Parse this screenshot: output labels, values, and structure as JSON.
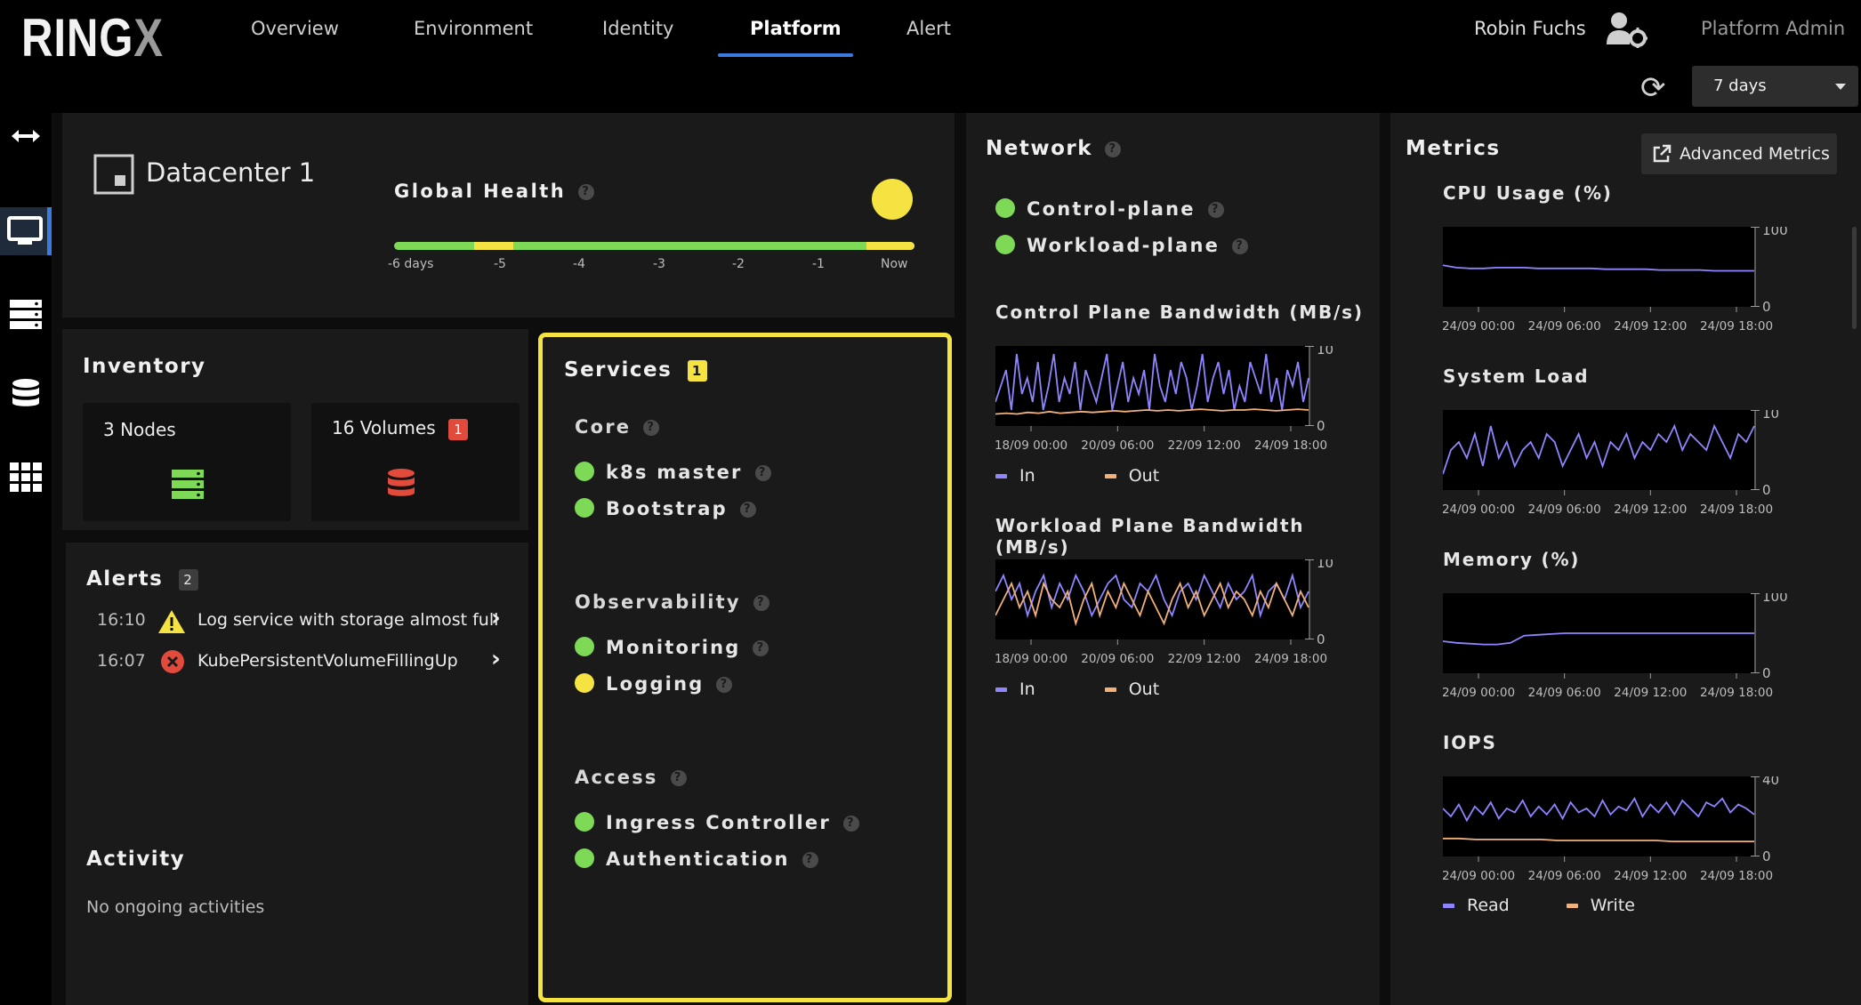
{
  "app": {
    "logo_main": "RING",
    "logo_x": "X"
  },
  "nav": {
    "tabs": [
      {
        "label": "Overview"
      },
      {
        "label": "Environment"
      },
      {
        "label": "Identity"
      },
      {
        "label": "Platform",
        "active": true
      },
      {
        "label": "Alert"
      }
    ],
    "user": "Robin Fuchs",
    "user_icon": "user-gear-icon",
    "role": "Platform Admin",
    "time_range": "7 days",
    "refresh_icon": "refresh-icon"
  },
  "sidebar": {
    "items": [
      {
        "icon": "expand-arrows-icon"
      },
      {
        "icon": "monitor-icon",
        "active": true
      },
      {
        "icon": "server-icon"
      },
      {
        "icon": "database-icon"
      },
      {
        "icon": "apps-grid-icon"
      }
    ]
  },
  "datacenter": {
    "name": "Datacenter 1",
    "global_health_label": "Global Health",
    "status_color": "#f5e342",
    "timeline_labels": [
      "-6 days",
      "-5",
      "-4",
      "-3",
      "-2",
      "-1",
      "Now"
    ]
  },
  "inventory": {
    "title": "Inventory",
    "nodes_label": "3 Nodes",
    "volumes_label": "16 Volumes",
    "volumes_alert_count": "1"
  },
  "alerts": {
    "title": "Alerts",
    "count": "2",
    "items": [
      {
        "time": "16:10",
        "text": "Log service with storage almost full",
        "severity": "warning"
      },
      {
        "time": "16:07",
        "text": "KubePersistentVolumeFillingUp",
        "severity": "critical"
      }
    ]
  },
  "activity": {
    "title": "Activity",
    "empty_text": "No ongoing activities"
  },
  "services": {
    "title": "Services",
    "badge": "1",
    "groups": [
      {
        "name": "Core",
        "items": [
          {
            "name": "k8s master",
            "status": "healthy"
          },
          {
            "name": "Bootstrap",
            "status": "healthy"
          }
        ]
      },
      {
        "name": "Observability",
        "items": [
          {
            "name": "Monitoring",
            "status": "healthy"
          },
          {
            "name": "Logging",
            "status": "warning"
          }
        ]
      },
      {
        "name": "Access",
        "items": [
          {
            "name": "Ingress Controller",
            "status": "healthy"
          },
          {
            "name": "Authentication",
            "status": "healthy"
          }
        ]
      }
    ]
  },
  "network": {
    "title": "Network",
    "planes": [
      {
        "name": "Control-plane",
        "status": "healthy"
      },
      {
        "name": "Workload-plane",
        "status": "healthy"
      }
    ],
    "legend": [
      "In",
      "Out"
    ]
  },
  "metrics": {
    "title": "Metrics",
    "advanced_button": "Advanced Metrics",
    "io_legend": [
      "Read",
      "Write"
    ]
  },
  "colors": {
    "healthy": "#7ed957",
    "warning": "#f5e342",
    "critical": "#e24a3b",
    "series_in": "#8f86ff",
    "series_out": "#f2b07a",
    "accent": "#3a7be0"
  },
  "chart_data": [
    {
      "type": "line",
      "title": "Control Plane Bandwidth (MB/s)",
      "ylim": [
        0,
        10
      ],
      "yticks": [
        "10",
        "0"
      ],
      "x_ticks": [
        "18/09 00:00",
        "20/09 06:00",
        "22/09 12:00",
        "24/09 18:00"
      ],
      "series": [
        {
          "name": "In",
          "values": [
            3,
            5,
            7,
            2,
            9,
            4,
            6,
            3,
            8,
            2,
            5,
            9,
            3,
            6,
            4,
            8,
            2,
            7,
            5,
            3,
            6,
            9,
            2,
            5,
            8,
            3,
            6,
            4,
            7,
            2,
            9,
            5,
            3,
            7,
            4,
            8,
            6,
            2,
            5,
            9,
            3,
            6,
            8,
            4,
            7,
            2,
            5,
            3,
            8,
            6,
            4,
            9,
            3,
            6,
            2,
            7,
            5,
            8,
            3,
            6
          ]
        },
        {
          "name": "Out",
          "values": [
            1.5,
            1.6,
            1.5,
            1.7,
            1.6,
            1.8,
            1.6,
            1.7,
            1.8,
            1.7,
            1.8,
            1.9,
            1.8,
            1.9,
            2.0,
            1.9,
            2.0,
            1.9,
            2.0,
            2.1,
            2.0,
            1.9,
            2.0,
            2.0,
            2.1,
            2.0,
            1.9,
            2.0,
            2.1,
            2.0
          ]
        }
      ]
    },
    {
      "type": "line",
      "title": "Workload Plane Bandwidth (MB/s)",
      "ylim": [
        0,
        10
      ],
      "yticks": [
        "10",
        "0"
      ],
      "x_ticks": [
        "18/09 00:00",
        "20/09 06:00",
        "22/09 12:00",
        "24/09 18:00"
      ],
      "series": [
        {
          "name": "In",
          "values": [
            6,
            8,
            5,
            7,
            3,
            6,
            8,
            4,
            7,
            5,
            8,
            6,
            3,
            5,
            7,
            8,
            5,
            4,
            7,
            6,
            8,
            5,
            3,
            6,
            7,
            5,
            8,
            6,
            4,
            7,
            5,
            6,
            8,
            3,
            6,
            7,
            5,
            8,
            4,
            6
          ]
        },
        {
          "name": "Out",
          "values": [
            3,
            5,
            7,
            4,
            6,
            3,
            7,
            5,
            4,
            6,
            2,
            5,
            7,
            3,
            6,
            4,
            7,
            5,
            3,
            6,
            4,
            2,
            5,
            7,
            4,
            6,
            3,
            5,
            7,
            4,
            6,
            5,
            3,
            6,
            4,
            7,
            5,
            3,
            6,
            4
          ]
        }
      ]
    },
    {
      "type": "line",
      "title": "CPU Usage (%)",
      "ylim": [
        0,
        100
      ],
      "yticks": [
        "100",
        "0"
      ],
      "x_ticks": [
        "24/09 00:00",
        "24/09 06:00",
        "24/09 12:00",
        "24/09 18:00"
      ],
      "series": [
        {
          "values": [
            52,
            49,
            48,
            48,
            49,
            49,
            49,
            48,
            48,
            48,
            48,
            48,
            47,
            47,
            47,
            47,
            46,
            46,
            46,
            46,
            45,
            45,
            45,
            45
          ]
        }
      ]
    },
    {
      "type": "line",
      "title": "System Load",
      "ylim": [
        0,
        10
      ],
      "yticks": [
        "10",
        "0"
      ],
      "x_ticks": [
        "24/09 00:00",
        "24/09 06:00",
        "24/09 12:00",
        "24/09 18:00"
      ],
      "series": [
        {
          "values": [
            2,
            5,
            6,
            4,
            7,
            3,
            8,
            4,
            6,
            3,
            5,
            6,
            4,
            7,
            6,
            3,
            5,
            7,
            4,
            6,
            3,
            6,
            5,
            7,
            4,
            6,
            5,
            7,
            6,
            8,
            5,
            7,
            6,
            5,
            8,
            6,
            4,
            7,
            6,
            8
          ]
        }
      ]
    },
    {
      "type": "line",
      "title": "Memory (%)",
      "ylim": [
        0,
        100
      ],
      "yticks": [
        "100",
        "0"
      ],
      "x_ticks": [
        "24/09 00:00",
        "24/09 06:00",
        "24/09 12:00",
        "24/09 18:00"
      ],
      "series": [
        {
          "values": [
            40,
            38,
            37,
            36,
            36,
            38,
            47,
            48,
            49,
            50,
            50,
            50,
            50,
            50,
            50,
            50,
            50,
            50,
            50,
            50,
            50,
            50,
            50,
            50
          ]
        }
      ]
    },
    {
      "type": "line",
      "title": "IOPS",
      "ylim": [
        0,
        40
      ],
      "yticks": [
        "40",
        "0"
      ],
      "x_ticks": [
        "24/09 00:00",
        "24/09 06:00",
        "24/09 12:00",
        "24/09 18:00"
      ],
      "series": [
        {
          "name": "Read",
          "values": [
            24,
            20,
            26,
            18,
            25,
            21,
            27,
            19,
            24,
            22,
            28,
            20,
            25,
            21,
            26,
            19,
            27,
            22,
            24,
            20,
            28,
            21,
            25,
            23,
            29,
            20,
            26,
            22,
            27,
            21,
            28,
            24,
            20,
            27,
            25,
            29,
            22,
            26,
            24,
            21
          ]
        },
        {
          "name": "Write",
          "values": [
            9,
            9,
            8.5,
            8.5,
            8.5,
            8.5,
            8.5,
            8,
            8,
            8,
            8,
            8,
            8,
            8,
            7.5,
            7.5,
            7.5,
            7.5,
            7.5,
            7.5
          ]
        }
      ]
    }
  ]
}
